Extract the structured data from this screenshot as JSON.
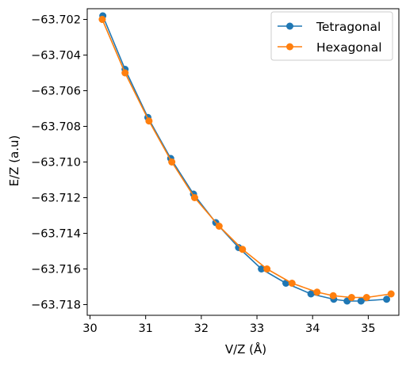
{
  "chart_data": {
    "type": "line",
    "title": "",
    "xlabel": "V/Z (Å)",
    "ylabel": "E/Z (a.u)",
    "xlim": [
      29.95,
      35.55
    ],
    "ylim": [
      -63.7186,
      -63.7014
    ],
    "xticks": [
      30,
      31,
      32,
      33,
      34,
      35
    ],
    "yticks": [
      -63.702,
      -63.704,
      -63.706,
      -63.708,
      -63.71,
      -63.712,
      -63.714,
      -63.716,
      -63.718
    ],
    "xtick_labels": [
      "30",
      "31",
      "32",
      "33",
      "34",
      "35"
    ],
    "ytick_labels": [
      "−63.702",
      "−63.704",
      "−63.706",
      "−63.708",
      "−63.710",
      "−63.712",
      "−63.714",
      "−63.716",
      "−63.718"
    ],
    "grid": false,
    "legend_position": "top-right",
    "series": [
      {
        "name": "Tetragonal",
        "color": "#1f77b4",
        "marker": "circle",
        "x": [
          30.23,
          30.63,
          31.04,
          31.45,
          31.86,
          32.26,
          32.67,
          33.08,
          33.52,
          33.97,
          34.38,
          34.62,
          34.87,
          35.33
        ],
        "y": [
          -63.7018,
          -63.7048,
          -63.7075,
          -63.7098,
          -63.7118,
          -63.7134,
          -63.7148,
          -63.716,
          -63.7168,
          -63.7174,
          -63.7177,
          -63.7178,
          -63.7178,
          -63.7177
        ]
      },
      {
        "name": "Hexagonal",
        "color": "#ff7f0e",
        "marker": "circle",
        "x": [
          30.22,
          30.63,
          31.06,
          31.47,
          31.88,
          32.32,
          32.74,
          33.18,
          33.63,
          34.08,
          34.37,
          34.7,
          34.97,
          35.41
        ],
        "y": [
          -63.702,
          -63.705,
          -63.7077,
          -63.71,
          -63.712,
          -63.7136,
          -63.7149,
          -63.716,
          -63.7168,
          -63.7173,
          -63.7175,
          -63.7176,
          -63.7176,
          -63.7174
        ]
      }
    ]
  }
}
